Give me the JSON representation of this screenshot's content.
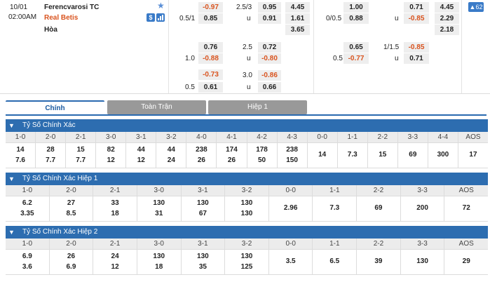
{
  "match": {
    "date": "10/01",
    "time": "02:00AM",
    "home": "Ferencvarosi TC",
    "away": "Real Betis",
    "draw": "Hòa",
    "badge_count": "62",
    "icons": [
      "star-icon",
      "dollar-icon",
      "chart-icon"
    ]
  },
  "odds_full": {
    "handicap": [
      {
        "line_home": "",
        "line_away": "0.5/1",
        "home": "-0.97",
        "away": "0.85"
      },
      {
        "line_home": "",
        "line_away": "1.0",
        "home": "0.76",
        "away": "-0.88"
      },
      {
        "line_home": "",
        "line_away": "0.5",
        "home": "-0.73",
        "away": "0.61"
      }
    ],
    "over_under": [
      {
        "line": "2.5/3",
        "over": "0.95",
        "under": "0.91",
        "u": "u"
      },
      {
        "line": "2.5",
        "over": "0.72",
        "under": "-0.80",
        "u": "u"
      },
      {
        "line": "3.0",
        "over": "-0.86",
        "under": "0.66",
        "u": "u"
      }
    ],
    "x12": [
      "4.45",
      "1.61",
      "3.65"
    ]
  },
  "odds_half": {
    "handicap": [
      {
        "line": "0/0.5",
        "home": "1.00",
        "away": "0.88"
      },
      {
        "line": "0.5",
        "home": "0.65",
        "away": "-0.77"
      }
    ],
    "over_under": [
      {
        "line": "",
        "over": "0.71",
        "under": "-0.85",
        "u": "u"
      },
      {
        "line": "1/1.5",
        "over": "-0.85",
        "under": "0.71",
        "u": "u"
      }
    ],
    "x12": [
      "4.45",
      "2.29",
      "2.18"
    ]
  },
  "tabs": [
    "Chính",
    "Toàn Trận",
    "Hiệp 1"
  ],
  "sections": [
    {
      "title": "Tỷ Số Chính Xác",
      "headers": [
        "1-0",
        "2-0",
        "2-1",
        "3-0",
        "3-1",
        "3-2",
        "4-0",
        "4-1",
        "4-2",
        "4-3",
        "0-0",
        "1-1",
        "2-2",
        "3-3",
        "4-4",
        "AOS"
      ],
      "values": [
        [
          "14",
          "7.6"
        ],
        [
          "28",
          "7.7"
        ],
        [
          "15",
          "7.7"
        ],
        [
          "82",
          "12"
        ],
        [
          "44",
          "12"
        ],
        [
          "44",
          "24"
        ],
        [
          "238",
          "26"
        ],
        [
          "174",
          "26"
        ],
        [
          "178",
          "50"
        ],
        [
          "238",
          "150"
        ],
        [
          "14"
        ],
        [
          "7.3"
        ],
        [
          "15"
        ],
        [
          "69"
        ],
        [
          "300"
        ],
        [
          "17"
        ]
      ]
    },
    {
      "title": "Tỷ Số Chính Xác Hiệp 1",
      "headers": [
        "1-0",
        "2-0",
        "2-1",
        "3-0",
        "3-1",
        "3-2",
        "0-0",
        "1-1",
        "2-2",
        "3-3",
        "AOS"
      ],
      "values": [
        [
          "6.2",
          "3.35"
        ],
        [
          "27",
          "8.5"
        ],
        [
          "33",
          "18"
        ],
        [
          "130",
          "31"
        ],
        [
          "130",
          "67"
        ],
        [
          "130",
          "130"
        ],
        [
          "2.96"
        ],
        [
          "7.3"
        ],
        [
          "69"
        ],
        [
          "200"
        ],
        [
          "72"
        ]
      ]
    },
    {
      "title": "Tỷ Số Chính Xác Hiệp 2",
      "headers": [
        "1-0",
        "2-0",
        "2-1",
        "3-0",
        "3-1",
        "3-2",
        "0-0",
        "1-1",
        "2-2",
        "3-3",
        "AOS"
      ],
      "values": [
        [
          "6.9",
          "3.6"
        ],
        [
          "26",
          "6.9"
        ],
        [
          "24",
          "12"
        ],
        [
          "130",
          "18"
        ],
        [
          "130",
          "35"
        ],
        [
          "130",
          "125"
        ],
        [
          "3.5"
        ],
        [
          "6.5"
        ],
        [
          "39"
        ],
        [
          "130"
        ],
        [
          "29"
        ]
      ]
    }
  ]
}
